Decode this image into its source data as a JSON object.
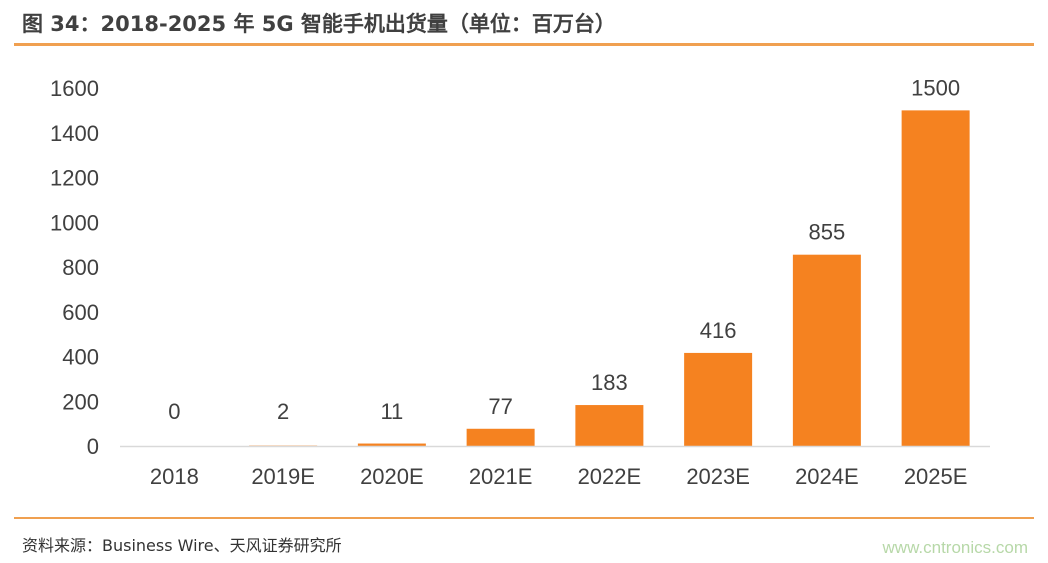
{
  "header": {
    "title": "图 34：2018-2025 年 5G 智能手机出货量（单位：百万台）"
  },
  "footer": {
    "source": "资料来源：Business Wire、天风证券研究所",
    "watermark": "www.cntronics.com"
  },
  "colors": {
    "bar": "#f58220",
    "rule": "#f0a050",
    "axis": "#d9d9d9"
  },
  "chart_data": {
    "type": "bar",
    "title": "图 34：2018-2025 年 5G 智能手机出货量（单位：百万台）",
    "categories": [
      "2018",
      "2019E",
      "2020E",
      "2021E",
      "2022E",
      "2023E",
      "2024E",
      "2025E"
    ],
    "values": [
      0,
      2,
      11,
      77,
      183,
      416,
      855,
      1500
    ],
    "data_labels": [
      "0",
      "2",
      "11",
      "77",
      "183",
      "416",
      "855",
      "1500"
    ],
    "ylim": [
      0,
      1600
    ],
    "yticks": [
      0,
      200,
      400,
      600,
      800,
      1000,
      1200,
      1400,
      1600
    ],
    "xlabel": "",
    "ylabel": "",
    "grid": false,
    "legend": "none"
  }
}
